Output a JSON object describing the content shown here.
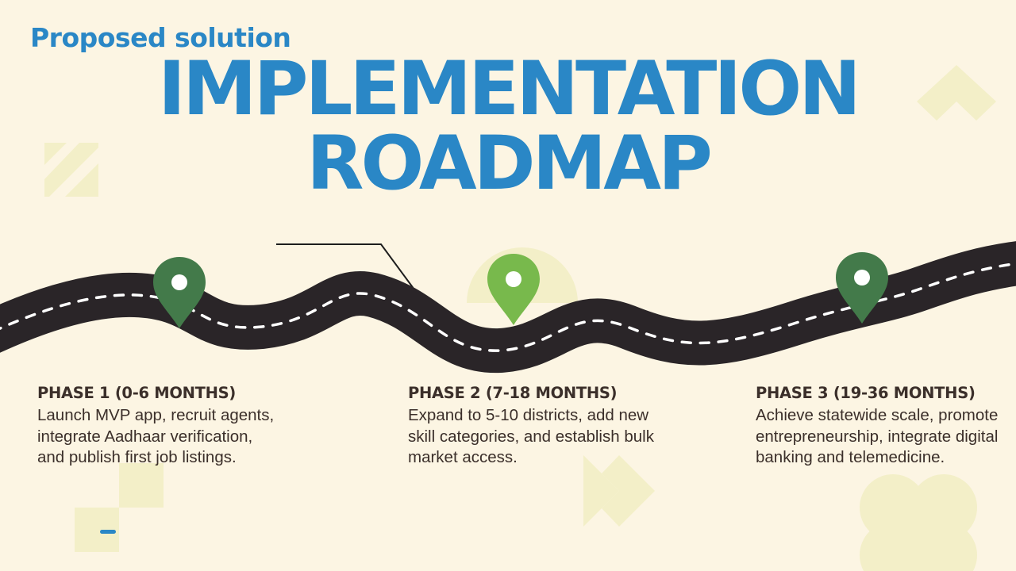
{
  "slide": {
    "eyebrow": "Proposed solution",
    "title_line1": "IMPLEMENTATION",
    "title_line2": "ROADMAP"
  },
  "phases": [
    {
      "heading": "PHASE 1 (0-6 MONTHS)",
      "body": "Launch MVP app, recruit agents, integrate Aadhaar verification, and publish first job listings.",
      "pin_color": "#437a4a"
    },
    {
      "heading": "PHASE 2 (7-18 MONTHS)",
      "body": "Expand to 5-10 districts, add new skill categories, and establish bulk market access.",
      "pin_color": "#78b94c"
    },
    {
      "heading": "PHASE 3 (19-36 MONTHS)",
      "body": "Achieve statewide scale, promote entrepreneurship, integrate digital banking and telemedicine.",
      "pin_color": "#437a4a"
    }
  ],
  "colors": {
    "background": "#fcf5e3",
    "accent_blue": "#2a87c6",
    "road": "#2a2528",
    "road_dash": "#ffffff",
    "text": "#3b2f2a",
    "decor": "#f3efc8"
  }
}
